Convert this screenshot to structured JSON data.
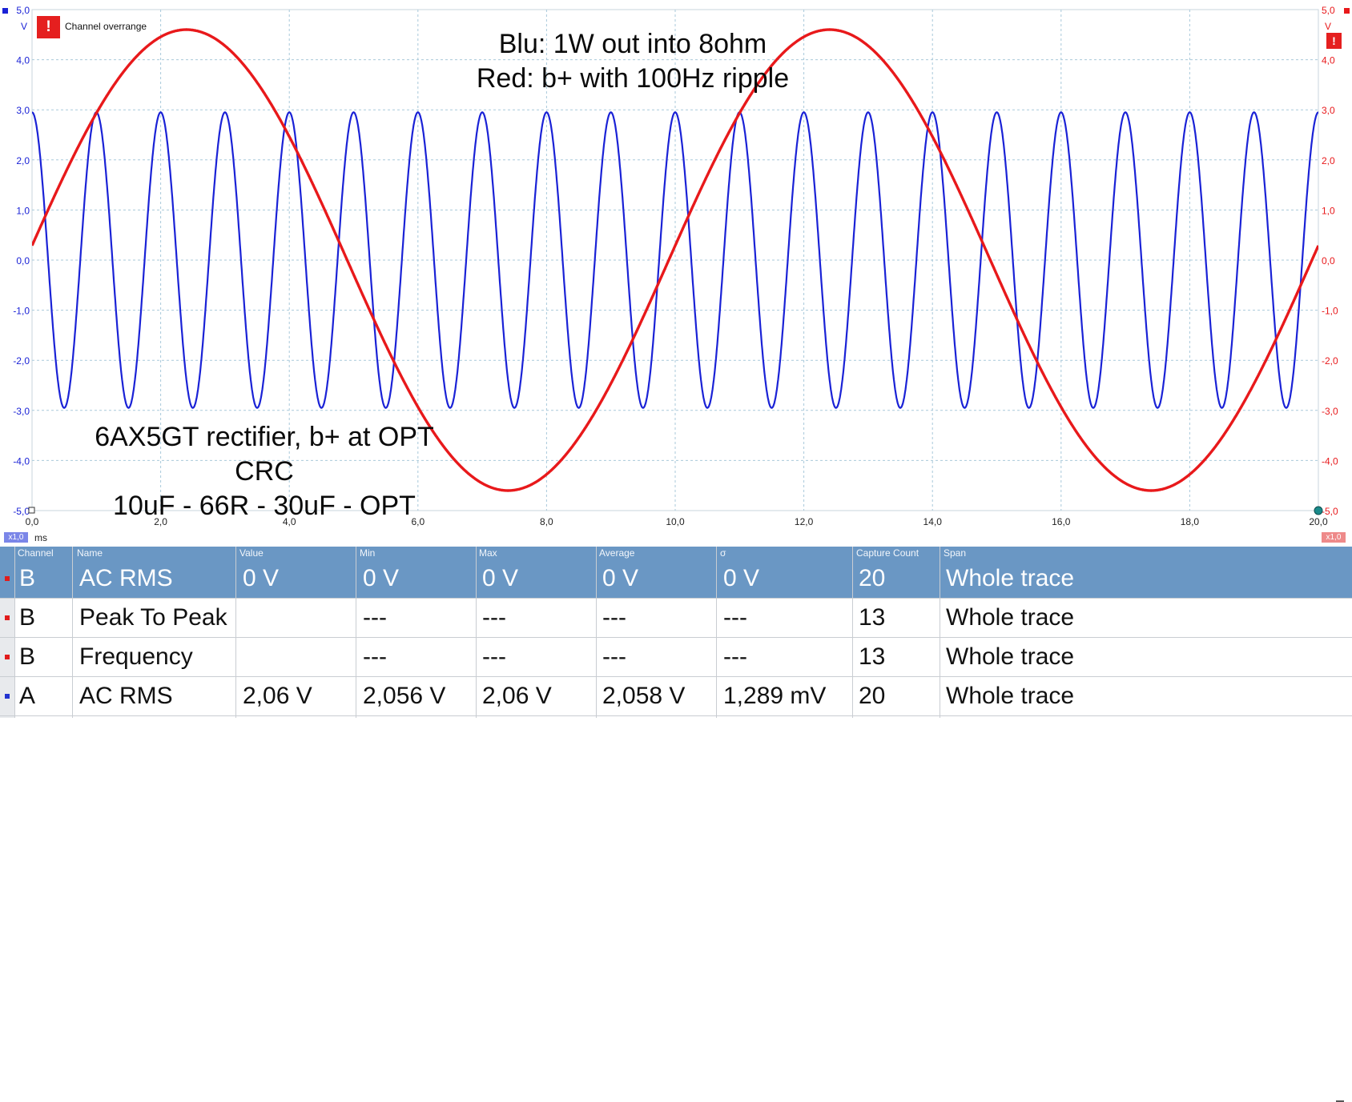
{
  "scope": {
    "overrange_label": "Channel overrange",
    "overrange_icon": "!",
    "annotation_top": [
      "Blu: 1W out into 8ohm",
      "Red: b+ with 100Hz ripple"
    ],
    "annotation_bottom": [
      "6AX5GT rectifier, b+ at OPT",
      "CRC",
      "10uF - 66R - 30uF - OPT"
    ],
    "left_axis_unit": "V",
    "right_axis_unit": "V",
    "x_axis_unit": "ms",
    "x_zoom_badge": "x1,0",
    "right_zoom_badge": "x1,0",
    "y_ticks": [
      "5,0",
      "4,0",
      "3,0",
      "2,0",
      "1,0",
      "0,0",
      "-1,0",
      "-2,0",
      "-3,0",
      "-4,0",
      "-5,0"
    ],
    "x_ticks": [
      "0,0",
      "2,0",
      "4,0",
      "6,0",
      "8,0",
      "10,0",
      "12,0",
      "14,0",
      "16,0",
      "18,0",
      "20,0"
    ],
    "colors": {
      "channel_a": "#1a22d6",
      "channel_b": "#e8191b",
      "grid": "#a9c9da",
      "selected_row": "#6a97c4"
    }
  },
  "chart_data": {
    "type": "line",
    "xlabel": "ms",
    "ylabel": "V",
    "xlim": [
      0,
      20
    ],
    "ylim": [
      -5,
      5
    ],
    "grid": true,
    "series": [
      {
        "name": "Blu: 1W out into 8ohm",
        "amplitude_v": 2.95,
        "frequency_hz": 1000,
        "color": "#1a22d6"
      },
      {
        "name": "Red: b+ with 100Hz ripple",
        "amplitude_v": 4.6,
        "frequency_hz": 100,
        "peak_time_ms": 12.4,
        "color": "#e8191b"
      }
    ]
  },
  "measurements": {
    "columns": [
      "Channel",
      "Name",
      "Value",
      "Min",
      "Max",
      "Average",
      "σ",
      "Capture Count",
      "Span"
    ],
    "rows": [
      {
        "channel": "B",
        "name": "AC RMS",
        "value": "0 V",
        "min": "0 V",
        "max": "0 V",
        "average": "0 V",
        "sigma": "0 V",
        "count": "20",
        "span": "Whole trace",
        "selected": true
      },
      {
        "channel": "B",
        "name": "Peak To Peak",
        "value": "",
        "min": "---",
        "max": "---",
        "average": "---",
        "sigma": "---",
        "count": "13",
        "span": "Whole trace",
        "selected": false
      },
      {
        "channel": "B",
        "name": "Frequency",
        "value": "",
        "min": "---",
        "max": "---",
        "average": "---",
        "sigma": "---",
        "count": "13",
        "span": "Whole trace",
        "selected": false
      },
      {
        "channel": "A",
        "name": "AC RMS",
        "value": "2,06 V",
        "min": "2,056 V",
        "max": "2,06 V",
        "average": "2,058 V",
        "sigma": "1,289 mV",
        "count": "20",
        "span": "Whole trace",
        "selected": false
      }
    ]
  }
}
